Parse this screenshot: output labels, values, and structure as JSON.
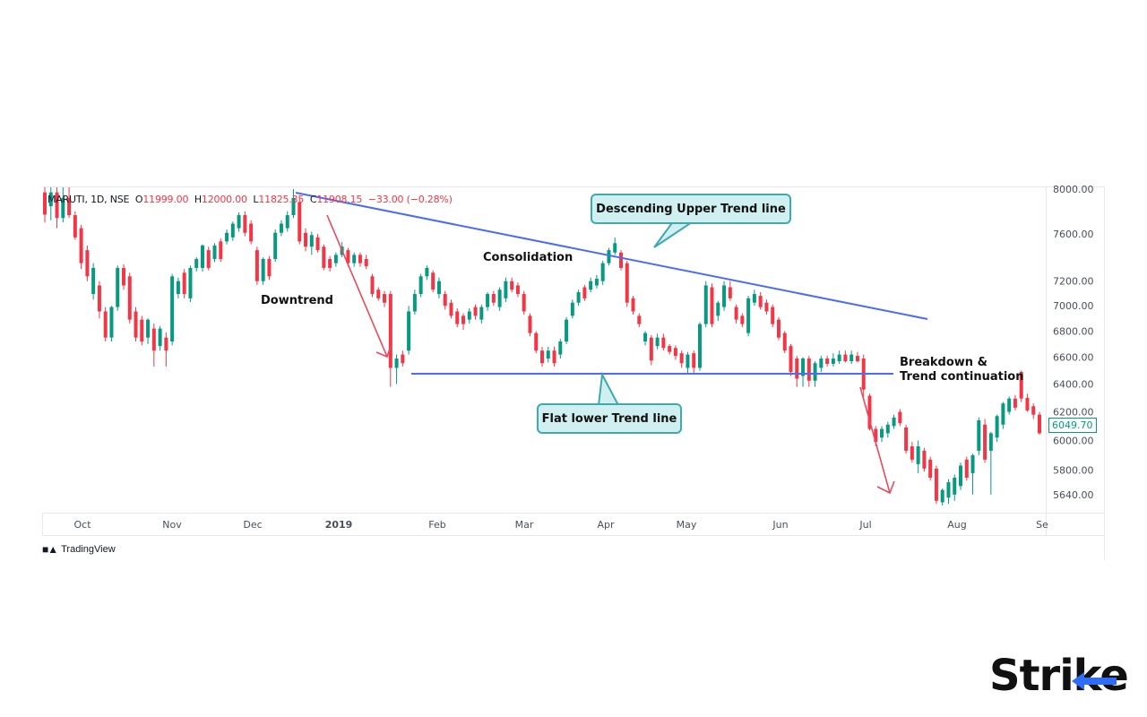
{
  "header": {
    "symbol": "MARUTI, 1D, NSE",
    "o_label": "O",
    "o_value": "11999.00",
    "h_label": "H",
    "h_value": "12000.00",
    "l_label": "L",
    "l_value": "11825.35",
    "c_label": "C",
    "c_value": "11908.15",
    "change": "−33.00 (−0.28%)"
  },
  "annotations": {
    "downtrend": "Downtrend",
    "consolidation": "Consolidation",
    "upper": "Descending Upper Trend line",
    "lower": "Flat lower Trend line",
    "breakdown_1": "Breakdown &",
    "breakdown_2": "Trend continuation"
  },
  "footer": {
    "tradingview": "TradingView"
  },
  "logo": {
    "text_a": "Stri",
    "text_b": "ke"
  },
  "colors": {
    "up": "#089981",
    "down": "#f23645",
    "trendline": "#4a6cf7",
    "arrow": "#e84a5f",
    "callout_fill": "#cfeff1",
    "callout_border": "#3fa9ad",
    "brand_blue": "#2f6df6"
  },
  "chart_data": {
    "type": "candlestick",
    "title": "",
    "y_scale": "log",
    "ylim": [
      5580,
      8050
    ],
    "grid": false,
    "last_price": "6049.70",
    "y_ticks": [
      "8000.00",
      "7600.00",
      "7200.00",
      "7000.00",
      "6800.00",
      "6600.00",
      "6400.00",
      "6200.00",
      "6000.00",
      "5800.00",
      "5640.00"
    ],
    "x_ticks": [
      "Oct",
      "Nov",
      "Dec",
      "2019",
      "Feb",
      "Mar",
      "Apr",
      "May",
      "Jun",
      "Jul",
      "Aug",
      "Se"
    ],
    "ohlc": [
      [
        7970,
        8050,
        7700,
        7770
      ],
      [
        7845,
        8050,
        7720,
        7970
      ],
      [
        7970,
        8050,
        7650,
        7740
      ],
      [
        7740,
        8050,
        7700,
        7920
      ],
      [
        7920,
        8050,
        7740,
        7765
      ],
      [
        7765,
        7800,
        7550,
        7570
      ],
      [
        7650,
        7680,
        7300,
        7350
      ],
      [
        7460,
        7500,
        7200,
        7240
      ],
      [
        7095,
        7350,
        7050,
        7310
      ],
      [
        7165,
        7200,
        6900,
        6955
      ],
      [
        6955,
        6990,
        6720,
        6750
      ],
      [
        6750,
        7000,
        6720,
        6990
      ],
      [
        6990,
        7330,
        6960,
        7310
      ],
      [
        7310,
        7340,
        7130,
        7165
      ],
      [
        7240,
        7270,
        6860,
        6890
      ],
      [
        6955,
        6990,
        6720,
        6750
      ],
      [
        6890,
        6920,
        6690,
        6720
      ],
      [
        6750,
        6900,
        6700,
        6890
      ],
      [
        6820,
        6860,
        6530,
        6650
      ],
      [
        6685,
        6840,
        6650,
        6820
      ],
      [
        6750,
        6790,
        6530,
        6650
      ],
      [
        6720,
        7260,
        6690,
        7240
      ],
      [
        7095,
        7230,
        7060,
        7200
      ],
      [
        7270,
        7300,
        7060,
        7095
      ],
      [
        7060,
        7330,
        7030,
        7310
      ],
      [
        7310,
        7400,
        7280,
        7385
      ],
      [
        7310,
        7510,
        7280,
        7500
      ],
      [
        7460,
        7490,
        7290,
        7310
      ],
      [
        7385,
        7520,
        7360,
        7500
      ],
      [
        7535,
        7560,
        7360,
        7385
      ],
      [
        7535,
        7640,
        7510,
        7610
      ],
      [
        7570,
        7710,
        7540,
        7690
      ],
      [
        7650,
        7790,
        7620,
        7765
      ],
      [
        7765,
        7800,
        7580,
        7610
      ],
      [
        7690,
        7720,
        7510,
        7535
      ],
      [
        7460,
        7490,
        7170,
        7200
      ],
      [
        7200,
        7400,
        7170,
        7385
      ],
      [
        7385,
        7410,
        7210,
        7240
      ],
      [
        7385,
        7640,
        7360,
        7610
      ],
      [
        7610,
        7720,
        7580,
        7690
      ],
      [
        7650,
        7800,
        7620,
        7765
      ],
      [
        7765,
        8000,
        7740,
        7920
      ],
      [
        7880,
        7920,
        7510,
        7535
      ],
      [
        7610,
        7650,
        7450,
        7490
      ],
      [
        7490,
        7620,
        7420,
        7590
      ],
      [
        7570,
        7600,
        7440,
        7460
      ],
      [
        7490,
        7510,
        7290,
        7310
      ],
      [
        7385,
        7410,
        7280,
        7310
      ],
      [
        7350,
        7440,
        7320,
        7420
      ],
      [
        7420,
        7530,
        7400,
        7490
      ],
      [
        7460,
        7480,
        7320,
        7350
      ],
      [
        7350,
        7440,
        7320,
        7420
      ],
      [
        7420,
        7440,
        7320,
        7350
      ],
      [
        7385,
        7420,
        7300,
        7325
      ],
      [
        7240,
        7260,
        7070,
        7095
      ],
      [
        7130,
        7150,
        7040,
        7060
      ],
      [
        7095,
        7120,
        6990,
        7025
      ],
      [
        7095,
        7120,
        6380,
        6520
      ],
      [
        6520,
        6620,
        6400,
        6590
      ],
      [
        6620,
        6650,
        6530,
        6555
      ],
      [
        6650,
        7000,
        6620,
        6955
      ],
      [
        6955,
        7130,
        6930,
        7095
      ],
      [
        7095,
        7260,
        7070,
        7240
      ],
      [
        7240,
        7330,
        7210,
        7310
      ],
      [
        7270,
        7290,
        7110,
        7130
      ],
      [
        7095,
        7230,
        7060,
        7200
      ],
      [
        7095,
        7120,
        6970,
        7000
      ],
      [
        7025,
        7050,
        6900,
        6920
      ],
      [
        6955,
        6980,
        6830,
        6855
      ],
      [
        6920,
        6940,
        6810,
        6855
      ],
      [
        6890,
        6980,
        6860,
        6955
      ],
      [
        6990,
        7010,
        6890,
        6920
      ],
      [
        6890,
        7010,
        6860,
        6990
      ],
      [
        6990,
        7110,
        6960,
        7095
      ],
      [
        7095,
        7120,
        7000,
        7025
      ],
      [
        6990,
        7150,
        6960,
        7130
      ],
      [
        7060,
        7230,
        7030,
        7200
      ],
      [
        7200,
        7230,
        7110,
        7130
      ],
      [
        7165,
        7190,
        7070,
        7095
      ],
      [
        7095,
        7120,
        6930,
        6955
      ],
      [
        6920,
        6940,
        6760,
        6785
      ],
      [
        6785,
        6800,
        6630,
        6650
      ],
      [
        6650,
        6680,
        6530,
        6555
      ],
      [
        6590,
        6680,
        6560,
        6650
      ],
      [
        6650,
        6680,
        6530,
        6555
      ],
      [
        6620,
        6740,
        6590,
        6720
      ],
      [
        6720,
        6910,
        6700,
        6890
      ],
      [
        6920,
        7050,
        6900,
        7025
      ],
      [
        7025,
        7130,
        7000,
        7110
      ],
      [
        7150,
        7170,
        7040,
        7060
      ],
      [
        7130,
        7230,
        7110,
        7200
      ],
      [
        7165,
        7250,
        7140,
        7220
      ],
      [
        7200,
        7370,
        7170,
        7350
      ],
      [
        7350,
        7480,
        7330,
        7460
      ],
      [
        7440,
        7570,
        7420,
        7520
      ],
      [
        7440,
        7460,
        7290,
        7310
      ],
      [
        7350,
        7370,
        6990,
        7025
      ],
      [
        7060,
        7080,
        6930,
        6955
      ],
      [
        6920,
        6940,
        6830,
        6855
      ],
      [
        6720,
        6800,
        6690,
        6785
      ],
      [
        6750,
        6770,
        6540,
        6575
      ],
      [
        6685,
        6780,
        6660,
        6750
      ],
      [
        6750,
        6780,
        6650,
        6670
      ],
      [
        6685,
        6700,
        6620,
        6640
      ],
      [
        6670,
        6690,
        6580,
        6610
      ],
      [
        6630,
        6650,
        6520,
        6555
      ],
      [
        6520,
        6640,
        6470,
        6620
      ],
      [
        6630,
        6650,
        6470,
        6520
      ],
      [
        6520,
        6870,
        6500,
        6855
      ],
      [
        6855,
        7200,
        6830,
        7165
      ],
      [
        7150,
        7180,
        6830,
        6855
      ],
      [
        6920,
        7040,
        6880,
        7025
      ],
      [
        6990,
        7200,
        6960,
        7165
      ],
      [
        7150,
        7200,
        7040,
        7060
      ],
      [
        6990,
        7010,
        6860,
        6890
      ],
      [
        6920,
        6940,
        6830,
        6855
      ],
      [
        6785,
        7080,
        6760,
        7060
      ],
      [
        7025,
        7130,
        7000,
        7095
      ],
      [
        7080,
        7110,
        6970,
        6990
      ],
      [
        7025,
        7050,
        6930,
        6955
      ],
      [
        6990,
        7010,
        6830,
        6855
      ],
      [
        6890,
        6910,
        6730,
        6750
      ],
      [
        6785,
        6800,
        6630,
        6650
      ],
      [
        6685,
        6700,
        6460,
        6490
      ],
      [
        6590,
        6610,
        6380,
        6440
      ],
      [
        6460,
        6600,
        6380,
        6590
      ],
      [
        6590,
        6610,
        6380,
        6425
      ],
      [
        6425,
        6570,
        6380,
        6555
      ],
      [
        6520,
        6610,
        6490,
        6590
      ],
      [
        6590,
        6610,
        6530,
        6550
      ],
      [
        6550,
        6630,
        6530,
        6590
      ],
      [
        6570,
        6650,
        6550,
        6620
      ],
      [
        6620,
        6650,
        6560,
        6570
      ],
      [
        6570,
        6650,
        6550,
        6620
      ],
      [
        6610,
        6640,
        6560,
        6570
      ],
      [
        6590,
        6620,
        6300,
        6360
      ],
      [
        6315,
        6330,
        6070,
        6080
      ],
      [
        6080,
        6100,
        5960,
        5990
      ],
      [
        6020,
        6100,
        5990,
        6080
      ],
      [
        6050,
        6130,
        6020,
        6110
      ],
      [
        6100,
        6180,
        6080,
        6160
      ],
      [
        6200,
        6220,
        6100,
        6120
      ],
      [
        6090,
        6110,
        5910,
        5930
      ],
      [
        5960,
        5990,
        5850,
        5870
      ],
      [
        5840,
        6000,
        5780,
        5960
      ],
      [
        5930,
        5950,
        5790,
        5810
      ],
      [
        5870,
        5890,
        5730,
        5750
      ],
      [
        5810,
        5830,
        5580,
        5600
      ],
      [
        5590,
        5680,
        5570,
        5670
      ],
      [
        5620,
        5740,
        5580,
        5720
      ],
      [
        5640,
        5770,
        5600,
        5750
      ],
      [
        5695,
        5850,
        5670,
        5830
      ],
      [
        5870,
        5890,
        5730,
        5750
      ],
      [
        5780,
        5910,
        5640,
        5900
      ],
      [
        5930,
        6160,
        5900,
        6140
      ],
      [
        6110,
        6150,
        5850,
        5870
      ],
      [
        5930,
        6060,
        5640,
        6050
      ],
      [
        6020,
        6180,
        5990,
        6170
      ],
      [
        6110,
        6270,
        6080,
        6260
      ],
      [
        6200,
        6310,
        6180,
        6295
      ],
      [
        6295,
        6320,
        6210,
        6230
      ],
      [
        6490,
        6500,
        6270,
        6295
      ],
      [
        6300,
        6330,
        6200,
        6210
      ],
      [
        6240,
        6260,
        6150,
        6180
      ],
      [
        6180,
        6200,
        6040,
        6050
      ]
    ]
  }
}
